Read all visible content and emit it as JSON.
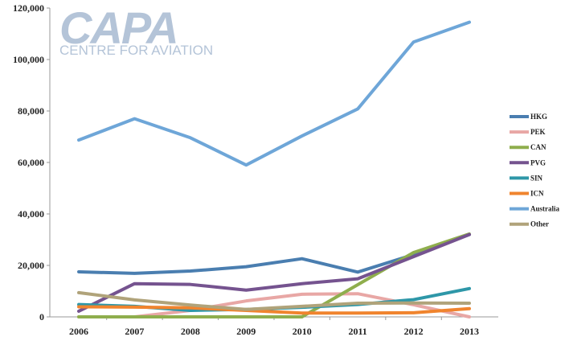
{
  "logo": {
    "main": "CAPA",
    "sub": "CENTRE FOR AVIATION"
  },
  "chart_data": {
    "type": "line",
    "x": [
      2006,
      2007,
      2008,
      2009,
      2010,
      2011,
      2012,
      2013
    ],
    "ylim": [
      0,
      120000
    ],
    "yticks": [
      0,
      20000,
      40000,
      60000,
      80000,
      100000,
      120000
    ],
    "ytick_labels": [
      "0",
      "20,000",
      "40,000",
      "60,000",
      "80,000",
      "100,000",
      "120,000"
    ],
    "xtick_labels": [
      "2006",
      "2007",
      "2008",
      "2009",
      "2010",
      "2011",
      "2012",
      "2013"
    ],
    "legend_position": "right",
    "grid": false,
    "series": [
      {
        "name": "HKG",
        "color": "#4a7eb0",
        "values": [
          17500,
          16900,
          17800,
          19500,
          22600,
          17400,
          24200,
          32000
        ]
      },
      {
        "name": "PEK",
        "color": "#e8a7a5",
        "values": [
          0,
          0,
          2500,
          6200,
          8800,
          9000,
          4700,
          0
        ]
      },
      {
        "name": "CAN",
        "color": "#8fae4d",
        "values": [
          0,
          0,
          0,
          0,
          0,
          12500,
          25000,
          32200
        ]
      },
      {
        "name": "PVG",
        "color": "#75538f",
        "values": [
          2200,
          12900,
          12600,
          10400,
          12900,
          14800,
          23400,
          32000
        ]
      },
      {
        "name": "SIN",
        "color": "#2e97a8",
        "values": [
          4800,
          4100,
          2500,
          2900,
          3700,
          4800,
          6700,
          11000
        ]
      },
      {
        "name": "ICN",
        "color": "#f0842e",
        "values": [
          3900,
          3800,
          3500,
          2500,
          1500,
          1500,
          1600,
          3200
        ]
      },
      {
        "name": "Australia",
        "color": "#6ea6d8",
        "values": [
          68700,
          77000,
          69600,
          59000,
          70300,
          80800,
          106800,
          114500
        ]
      },
      {
        "name": "Other",
        "color": "#b0a37a",
        "values": [
          9400,
          6600,
          4600,
          2900,
          4100,
          5300,
          5400,
          5300
        ]
      }
    ]
  }
}
